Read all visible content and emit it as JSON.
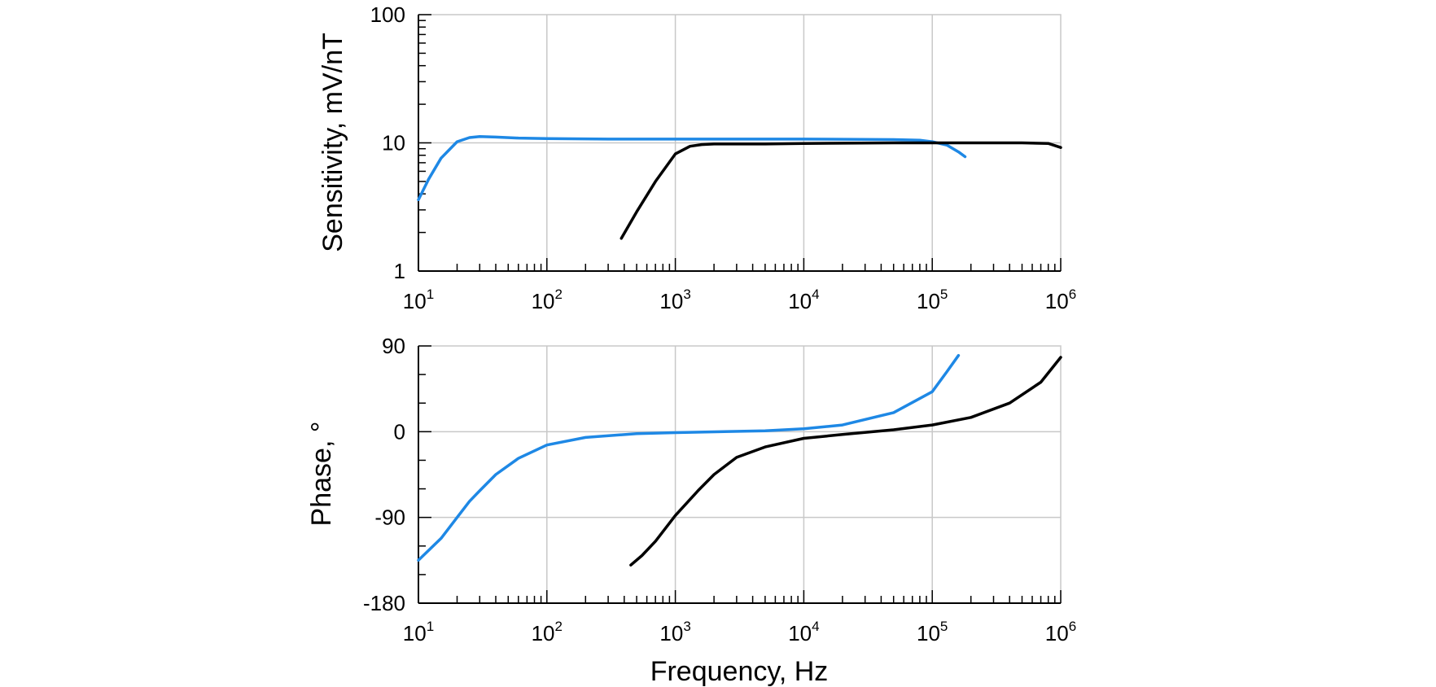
{
  "colors": {
    "blue": "#1e88e5",
    "black": "#000000",
    "grid": "#c8c8c8"
  },
  "chart_data": [
    {
      "type": "line",
      "ylabel": "Sensitivity, mV/nT",
      "xscale": "log",
      "yscale": "log",
      "xlim": [
        10,
        1000000
      ],
      "ylim": [
        1,
        100
      ],
      "x_tick_labels": [
        {
          "base": "10",
          "exp": "1"
        },
        {
          "base": "10",
          "exp": "2"
        },
        {
          "base": "10",
          "exp": "3"
        },
        {
          "base": "10",
          "exp": "4"
        },
        {
          "base": "10",
          "exp": "5"
        },
        {
          "base": "10",
          "exp": "6"
        }
      ],
      "y_tick_labels": [
        "100",
        "10",
        "1"
      ],
      "grid": true,
      "series": [
        {
          "color": "#1e88e5",
          "x": [
            10,
            12,
            15,
            20,
            25,
            30,
            40,
            60,
            100,
            300,
            1000,
            10000,
            50000,
            80000,
            100000,
            130000,
            160000,
            180000
          ],
          "y": [
            3.6,
            5.2,
            7.6,
            10.2,
            11.0,
            11.2,
            11.1,
            10.9,
            10.8,
            10.7,
            10.7,
            10.7,
            10.6,
            10.5,
            10.2,
            9.6,
            8.5,
            7.8
          ]
        },
        {
          "color": "#000000",
          "x": [
            380,
            500,
            700,
            1000,
            1300,
            1600,
            2000,
            5000,
            10000,
            50000,
            100000,
            200000,
            500000,
            800000,
            1000000
          ],
          "y": [
            1.8,
            2.9,
            5.0,
            8.2,
            9.4,
            9.7,
            9.8,
            9.8,
            9.9,
            10.0,
            10.0,
            10.0,
            10.0,
            9.9,
            9.2
          ]
        }
      ]
    },
    {
      "type": "line",
      "xlabel": "Frequency, Hz",
      "ylabel": "Phase, °",
      "xscale": "log",
      "xlim": [
        10,
        1000000
      ],
      "ylim": [
        -180,
        90
      ],
      "x_tick_labels": [
        {
          "base": "10",
          "exp": "1"
        },
        {
          "base": "10",
          "exp": "2"
        },
        {
          "base": "10",
          "exp": "3"
        },
        {
          "base": "10",
          "exp": "4"
        },
        {
          "base": "10",
          "exp": "5"
        },
        {
          "base": "10",
          "exp": "6"
        }
      ],
      "y_tick_labels": [
        "90",
        "0",
        "-90",
        "-180"
      ],
      "y_tick_values": [
        90,
        0,
        -90,
        -180
      ],
      "grid": true,
      "series": [
        {
          "color": "#1e88e5",
          "x": [
            10,
            15,
            20,
            25,
            30,
            40,
            60,
            100,
            200,
            500,
            1000,
            5000,
            10000,
            20000,
            50000,
            100000,
            130000,
            160000
          ],
          "y": [
            -135,
            -112,
            -90,
            -73,
            -62,
            -45,
            -28,
            -14,
            -6,
            -2,
            -1,
            1,
            3,
            7,
            20,
            42,
            63,
            80
          ]
        },
        {
          "color": "#000000",
          "x": [
            450,
            550,
            700,
            1000,
            1500,
            2000,
            3000,
            5000,
            10000,
            20000,
            50000,
            100000,
            200000,
            400000,
            700000,
            1000000
          ],
          "y": [
            -140,
            -130,
            -115,
            -88,
            -62,
            -45,
            -27,
            -16,
            -7,
            -3,
            2,
            7,
            15,
            30,
            52,
            78
          ]
        }
      ]
    }
  ]
}
